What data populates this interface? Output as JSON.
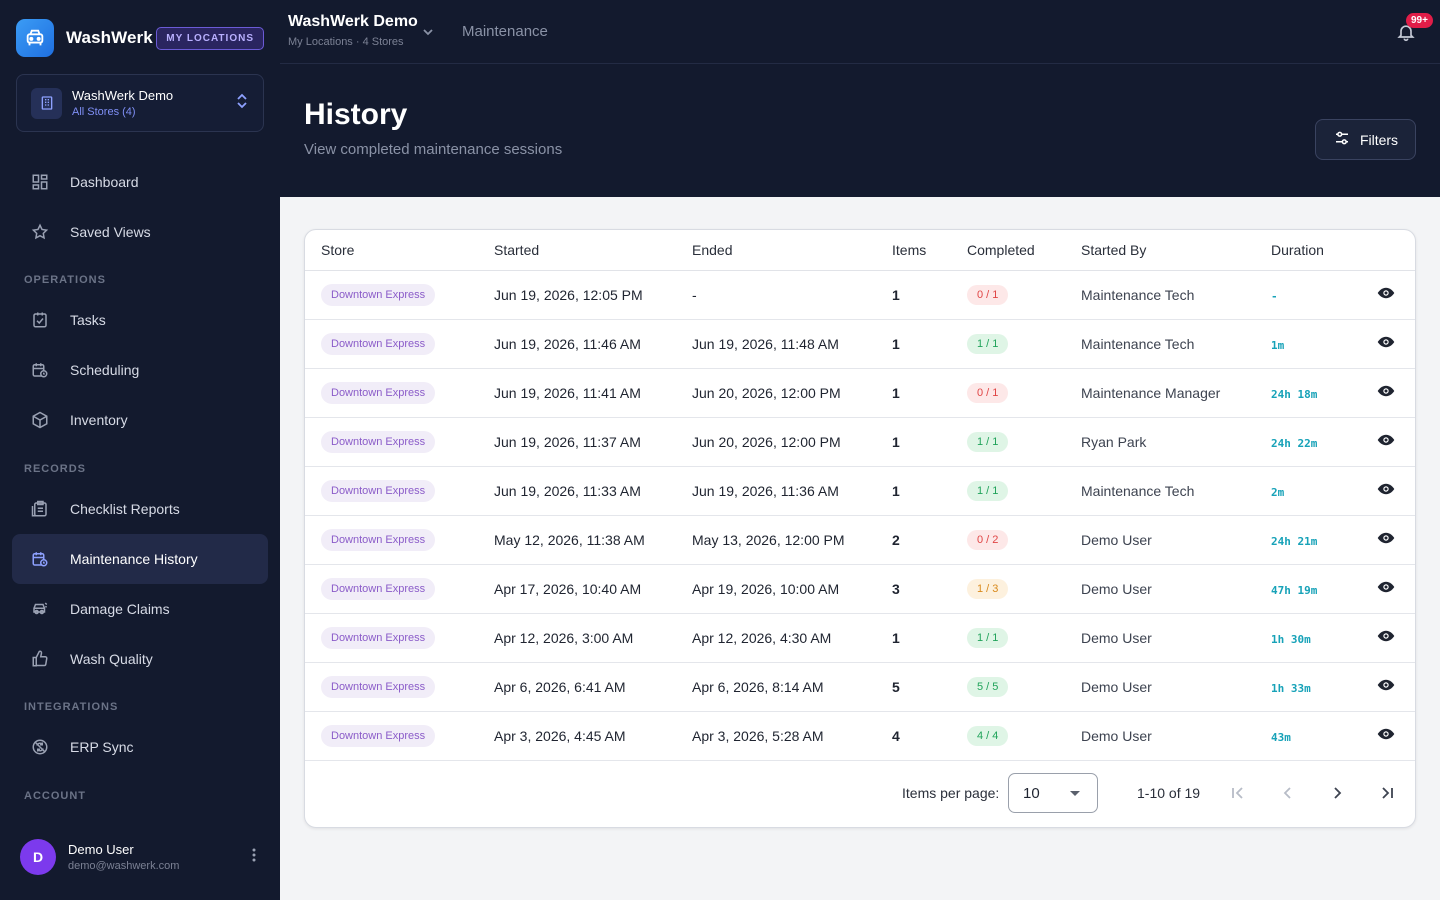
{
  "brand": {
    "name": "WashWerk",
    "badge": "MY LOCATIONS"
  },
  "org": {
    "name": "WashWerk Demo",
    "sub": "All Stores (4)"
  },
  "nav": {
    "dashboard": "Dashboard",
    "saved_views": "Saved Views",
    "section_operations": "OPERATIONS",
    "tasks": "Tasks",
    "scheduling": "Scheduling",
    "inventory": "Inventory",
    "section_records": "RECORDS",
    "checklist_reports": "Checklist Reports",
    "maintenance_history": "Maintenance History",
    "damage_claims": "Damage Claims",
    "wash_quality": "Wash Quality",
    "section_integrations": "INTEGRATIONS",
    "erp_sync": "ERP Sync",
    "section_account": "ACCOUNT"
  },
  "user": {
    "initial": "D",
    "name": "Demo User",
    "email": "demo@washwerk.com"
  },
  "topbar": {
    "workspace": "WashWerk Demo",
    "workspace_sub": "My Locations · 4 Stores",
    "crumb": "Maintenance",
    "notifications": "99+"
  },
  "page": {
    "title": "History",
    "subtitle": "View completed maintenance sessions",
    "filters_label": "Filters"
  },
  "table": {
    "headers": [
      "Store",
      "Started",
      "Ended",
      "Items",
      "Completed",
      "Started By",
      "Duration"
    ],
    "rows": [
      {
        "store": "Downtown Express",
        "started": "Jun 19, 2026, 12:05 PM",
        "ended": "-",
        "items": "1",
        "completed": "0 / 1",
        "status": "red",
        "by": "Maintenance Tech",
        "duration": "-"
      },
      {
        "store": "Downtown Express",
        "started": "Jun 19, 2026, 11:46 AM",
        "ended": "Jun 19, 2026, 11:48 AM",
        "items": "1",
        "completed": "1 / 1",
        "status": "green",
        "by": "Maintenance Tech",
        "duration": "1m"
      },
      {
        "store": "Downtown Express",
        "started": "Jun 19, 2026, 11:41 AM",
        "ended": "Jun 20, 2026, 12:00 PM",
        "items": "1",
        "completed": "0 / 1",
        "status": "red",
        "by": "Maintenance Manager",
        "duration": "24h 18m"
      },
      {
        "store": "Downtown Express",
        "started": "Jun 19, 2026, 11:37 AM",
        "ended": "Jun 20, 2026, 12:00 PM",
        "items": "1",
        "completed": "1 / 1",
        "status": "green",
        "by": "Ryan Park",
        "duration": "24h 22m"
      },
      {
        "store": "Downtown Express",
        "started": "Jun 19, 2026, 11:33 AM",
        "ended": "Jun 19, 2026, 11:36 AM",
        "items": "1",
        "completed": "1 / 1",
        "status": "green",
        "by": "Maintenance Tech",
        "duration": "2m"
      },
      {
        "store": "Downtown Express",
        "started": "May 12, 2026, 11:38 AM",
        "ended": "May 13, 2026, 12:00 PM",
        "items": "2",
        "completed": "0 / 2",
        "status": "red",
        "by": "Demo User",
        "duration": "24h 21m"
      },
      {
        "store": "Downtown Express",
        "started": "Apr 17, 2026, 10:40 AM",
        "ended": "Apr 19, 2026, 10:00 AM",
        "items": "3",
        "completed": "1 / 3",
        "status": "amber",
        "by": "Demo User",
        "duration": "47h 19m"
      },
      {
        "store": "Downtown Express",
        "started": "Apr 12, 2026, 3:00 AM",
        "ended": "Apr 12, 2026, 4:30 AM",
        "items": "1",
        "completed": "1 / 1",
        "status": "green",
        "by": "Demo User",
        "duration": "1h 30m"
      },
      {
        "store": "Downtown Express",
        "started": "Apr 6, 2026, 6:41 AM",
        "ended": "Apr 6, 2026, 8:14 AM",
        "items": "5",
        "completed": "5 / 5",
        "status": "green",
        "by": "Demo User",
        "duration": "1h 33m"
      },
      {
        "store": "Downtown Express",
        "started": "Apr 3, 2026, 4:45 AM",
        "ended": "Apr 3, 2026, 5:28 AM",
        "items": "4",
        "completed": "4 / 4",
        "status": "green",
        "by": "Demo User",
        "duration": "43m"
      }
    ]
  },
  "pagination": {
    "label": "Items per page:",
    "per_page": "10",
    "range": "1-10 of 19"
  },
  "colors": {
    "accent": "#7c3aed",
    "sidebar_bg": "#131a2e",
    "duration": "#17a2b8",
    "badge_red": "#e11d48"
  }
}
